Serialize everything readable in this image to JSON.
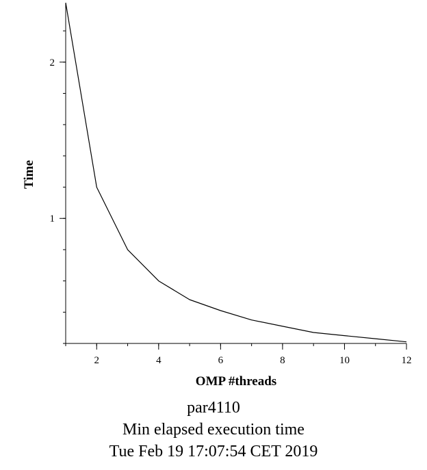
{
  "chart_data": {
    "type": "line",
    "xlabel": "OMP #threads",
    "ylabel": "Time",
    "xlim": [
      1,
      12
    ],
    "ylim": [
      0.2,
      2.38
    ],
    "x_ticks": [
      2,
      4,
      6,
      8,
      10,
      12
    ],
    "y_ticks": [
      1,
      2
    ],
    "x_minor_step": 1,
    "y_minor_step": 0.2,
    "grid": false,
    "series": [
      {
        "x": [
          1,
          2,
          3,
          4,
          5,
          6,
          7,
          8,
          9,
          10,
          11,
          12
        ],
        "values": [
          2.38,
          1.2,
          0.8,
          0.6,
          0.48,
          0.41,
          0.35,
          0.31,
          0.27,
          0.25,
          0.23,
          0.21
        ]
      }
    ],
    "line_color": "#000000"
  },
  "captions": {
    "line1": "par4110",
    "line2": "Min elapsed execution time",
    "line3": "Tue Feb 19 17:07:54 CET 2019"
  }
}
